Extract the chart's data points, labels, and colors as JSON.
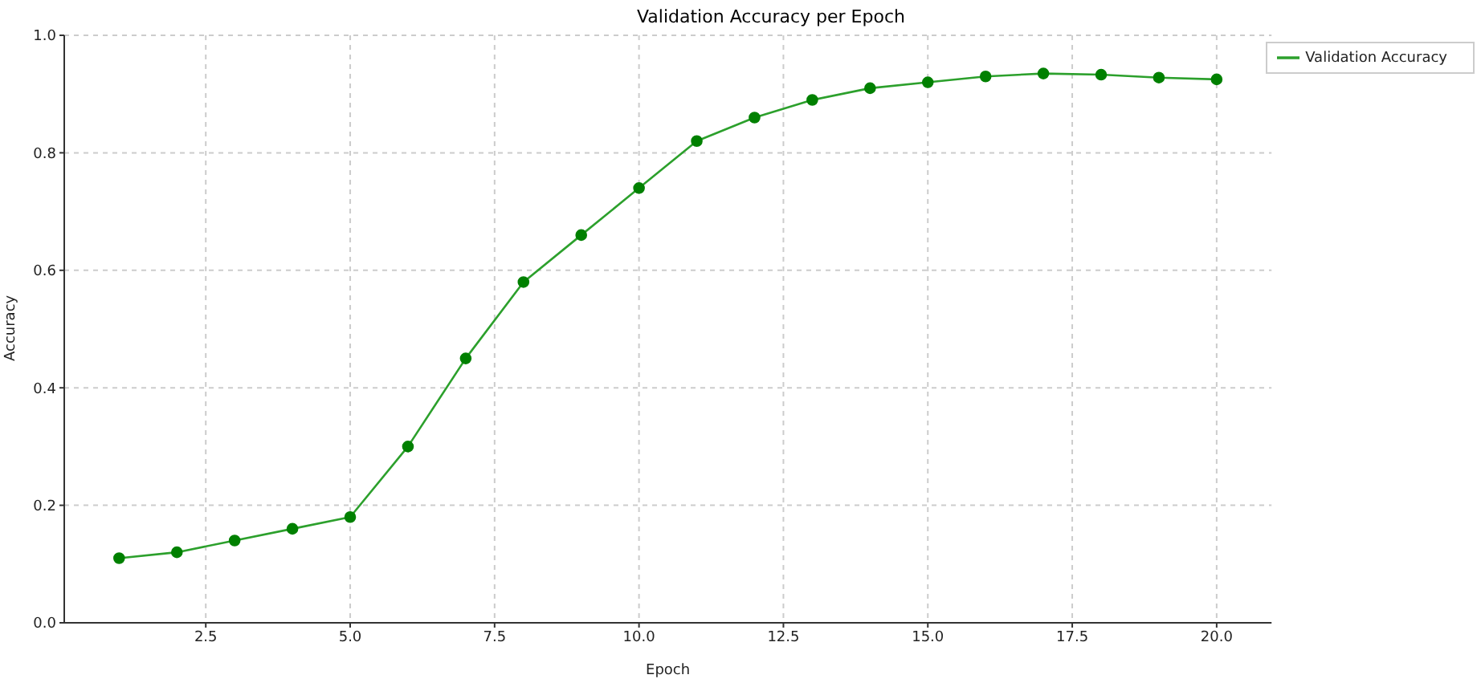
{
  "chart_data": {
    "type": "line",
    "title": "Validation Accuracy per Epoch",
    "xlabel": "Epoch",
    "ylabel": "Accuracy",
    "x": [
      1,
      2,
      3,
      4,
      5,
      6,
      7,
      8,
      9,
      10,
      11,
      12,
      13,
      14,
      15,
      16,
      17,
      18,
      19,
      20
    ],
    "series": [
      {
        "name": "Validation Accuracy",
        "color": "#2ca02c",
        "values": [
          0.11,
          0.12,
          0.14,
          0.16,
          0.18,
          0.3,
          0.45,
          0.58,
          0.66,
          0.74,
          0.82,
          0.86,
          0.89,
          0.91,
          0.92,
          0.93,
          0.935,
          0.933,
          0.928,
          0.925
        ]
      }
    ],
    "xlim": [
      0.05,
      20.95
    ],
    "xticks": [
      2.5,
      {
        "value": 5,
        "label": "5.0"
      },
      7.5,
      {
        "value": 10,
        "label": "10.0"
      },
      12.5,
      {
        "value": 15,
        "label": "15.0"
      },
      17.5,
      {
        "value": 20,
        "label": "20.0"
      }
    ],
    "ylim": [
      0,
      1
    ],
    "yticks": [
      {
        "value": 0,
        "label": "0.0"
      },
      0.2,
      0.4,
      0.6,
      0.8,
      {
        "value": 1,
        "label": "1.0"
      }
    ],
    "grid": true,
    "legend": "top right",
    "marker": "circle",
    "line_style": "solid"
  }
}
